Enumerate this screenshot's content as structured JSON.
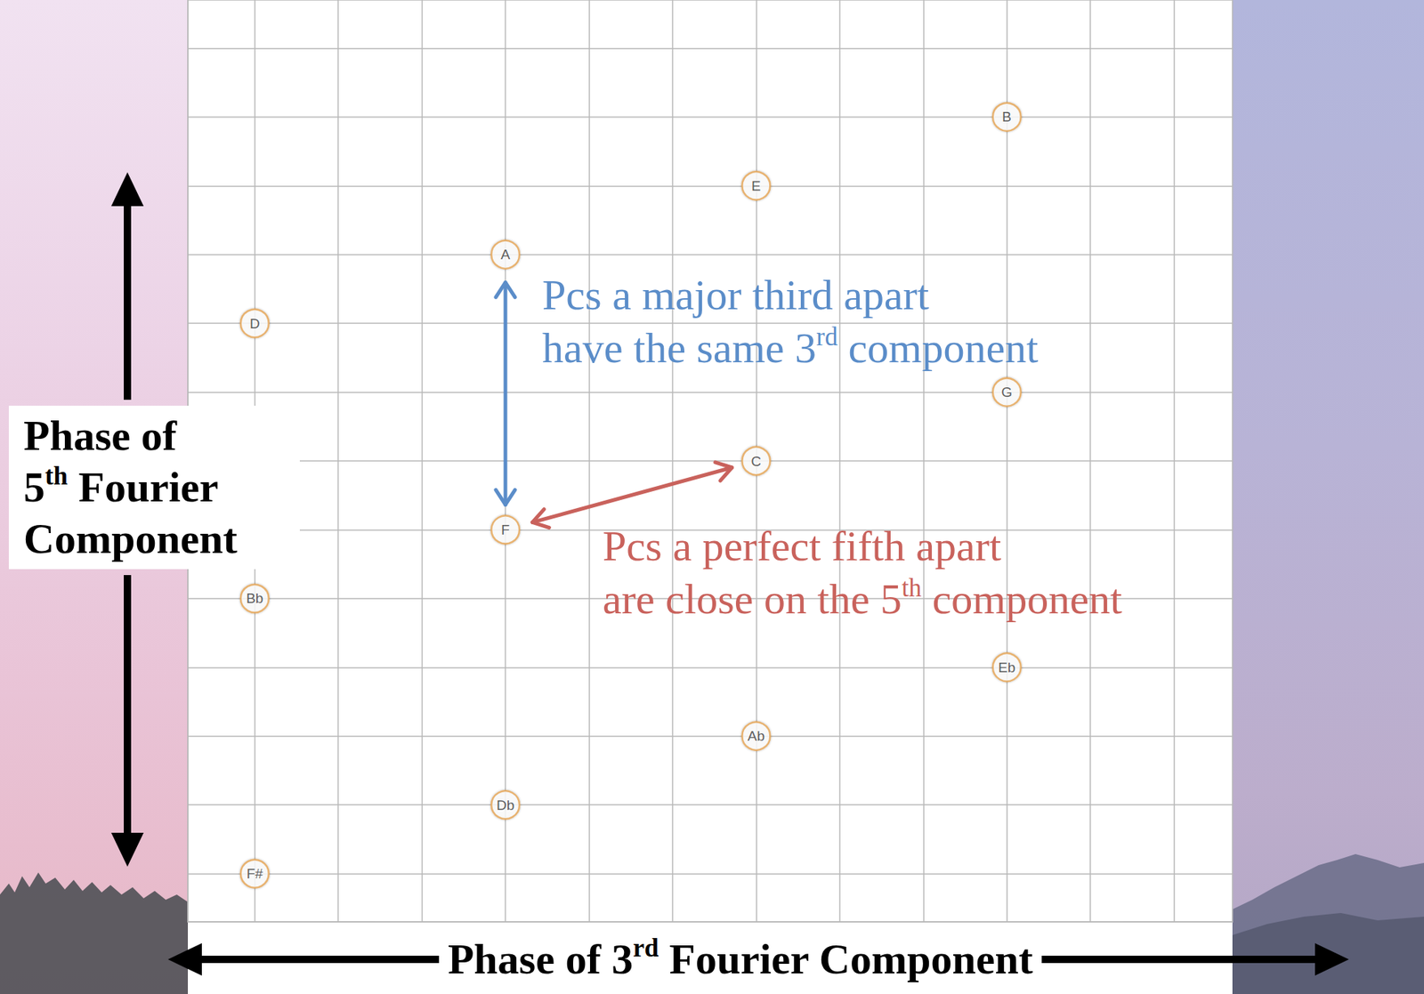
{
  "chart_data": {
    "type": "scatter",
    "x_label": "Phase of 3rd Fourier Component",
    "y_label": "Phase of 5th Fourier Component",
    "labels": [
      "B",
      "E",
      "A",
      "D",
      "G",
      "C",
      "F",
      "Bb",
      "Eb",
      "Ab",
      "Db",
      "F#"
    ],
    "x": [
      10,
      7,
      4,
      1,
      10,
      7,
      4,
      1,
      10,
      7,
      4,
      1
    ],
    "y": [
      12,
      11,
      10,
      9,
      8,
      7,
      6,
      5,
      4,
      3,
      2,
      1
    ],
    "color": "#e6a555",
    "marker": "circle",
    "xlim": [
      0.2,
      12.7
    ],
    "ylim": [
      0.3,
      13.7
    ],
    "xticks": [
      1,
      2,
      3,
      4,
      5,
      6,
      7,
      8,
      9,
      10,
      11,
      12
    ],
    "yticks": [
      1,
      2,
      3,
      4,
      5,
      6,
      7,
      8,
      9,
      10,
      11,
      12,
      13
    ],
    "grid": true,
    "tick_labels": false,
    "annotations": [
      {
        "lines": [
          "Pcs a major third apart",
          "have the same 3rd component"
        ],
        "from": "A",
        "to": "F",
        "color": "#5b8dc9"
      },
      {
        "lines": [
          "Pcs a perfect fifth apart",
          "are close on the 5th component"
        ],
        "from": "F",
        "to": "C",
        "color": "#c9625c"
      }
    ]
  }
}
